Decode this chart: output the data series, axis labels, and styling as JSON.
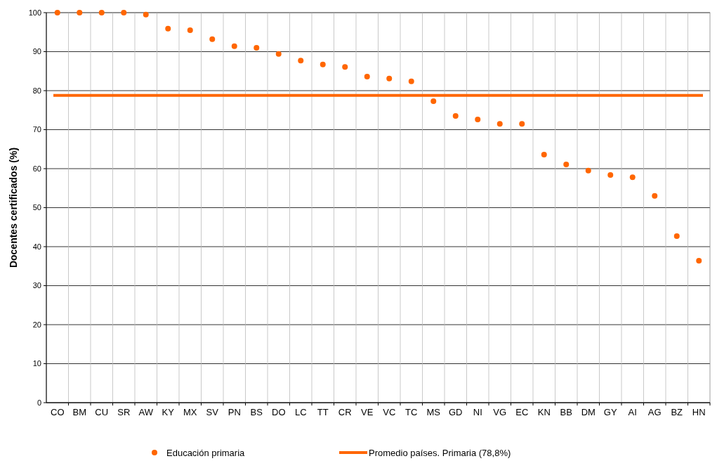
{
  "chart_data": {
    "type": "scatter",
    "ylabel": "Docentes certificados (%)",
    "categories": [
      "CO",
      "BM",
      "CU",
      "SR",
      "AW",
      "KY",
      "MX",
      "SV",
      "PN",
      "BS",
      "DO",
      "LC",
      "TT",
      "CR",
      "VE",
      "VC",
      "TC",
      "MS",
      "GD",
      "NI",
      "VG",
      "EC",
      "KN",
      "BB",
      "DM",
      "GY",
      "AI",
      "AG",
      "BZ",
      "HN"
    ],
    "series": [
      {
        "name": "Educación primaria",
        "color": "#ff6600",
        "values": [
          100,
          100,
          100,
          100,
          99.5,
          95.9,
          95.5,
          93.2,
          91.4,
          91.0,
          89.4,
          87.7,
          86.7,
          86.1,
          83.6,
          83.1,
          82.4,
          77.3,
          73.5,
          72.6,
          71.5,
          71.5,
          63.6,
          61.1,
          59.5,
          58.4,
          57.8,
          53.0,
          42.7,
          36.4
        ]
      }
    ],
    "ref_lines": [
      {
        "axis": "y",
        "value": 78.8,
        "label": "Promedio países. Primaria (78,8%)",
        "color": "#ff6600"
      }
    ],
    "ylim": [
      0,
      100
    ],
    "yticks": [
      0,
      10,
      20,
      30,
      40,
      50,
      60,
      70,
      80,
      90,
      100
    ],
    "grid": true,
    "legend": "bottom",
    "marker": "circle"
  }
}
